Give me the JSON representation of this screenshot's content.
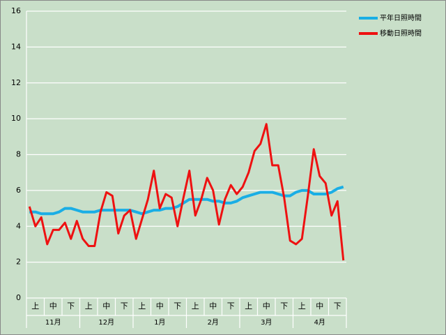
{
  "chart_data": {
    "type": "line",
    "categories": [
      null,
      "上",
      null,
      null,
      "中",
      null,
      null,
      "下",
      null,
      null,
      "上",
      null,
      null,
      "中",
      null,
      null,
      "下",
      null,
      null,
      "上",
      null,
      null,
      "中",
      null,
      null,
      "下",
      null,
      null,
      "上",
      null,
      null,
      "中",
      null,
      null,
      "下",
      null,
      null,
      "上",
      null,
      null,
      "中",
      null,
      null,
      "下",
      null,
      null,
      "上",
      null,
      null,
      "中",
      null,
      null,
      "下",
      null
    ],
    "groups": [
      "11月",
      "12月",
      "1月",
      "2月",
      "3月",
      "4月"
    ],
    "series": [
      {
        "name": "平年日照時間",
        "color": "#1aaee5",
        "values": [
          4.8,
          4.8,
          4.7,
          4.7,
          4.7,
          4.8,
          5.0,
          5.0,
          4.9,
          4.8,
          4.8,
          4.8,
          4.9,
          4.9,
          4.9,
          4.9,
          4.9,
          4.9,
          4.8,
          4.7,
          4.8,
          4.9,
          4.9,
          5.0,
          5.0,
          5.1,
          5.3,
          5.5,
          5.5,
          5.5,
          5.5,
          5.4,
          5.4,
          5.3,
          5.3,
          5.4,
          5.6,
          5.7,
          5.8,
          5.9,
          5.9,
          5.9,
          5.8,
          5.7,
          5.7,
          5.9,
          6.0,
          6.0,
          5.8,
          5.8,
          5.8,
          5.9,
          6.1,
          6.2
        ]
      },
      {
        "name": "移動日照時間",
        "color": "#ee1111",
        "values": [
          5.1,
          4.0,
          4.5,
          3.0,
          3.8,
          3.8,
          4.2,
          3.3,
          4.3,
          3.3,
          2.9,
          2.9,
          4.8,
          5.9,
          5.7,
          3.6,
          4.6,
          4.9,
          3.3,
          4.4,
          5.5,
          7.1,
          5.0,
          5.8,
          5.6,
          4.0,
          5.6,
          7.1,
          4.6,
          5.5,
          6.7,
          6.0,
          4.1,
          5.5,
          6.3,
          5.8,
          6.2,
          7.0,
          8.2,
          8.6,
          9.7,
          7.4,
          7.4,
          5.6,
          3.2,
          3.0,
          3.3,
          5.7,
          8.3,
          6.8,
          6.4,
          4.6,
          5.4,
          2.1
        ]
      }
    ],
    "ylim": [
      0,
      16
    ],
    "yticks": [
      0,
      2,
      4,
      6,
      8,
      10,
      12,
      14,
      16
    ],
    "grid": true
  }
}
